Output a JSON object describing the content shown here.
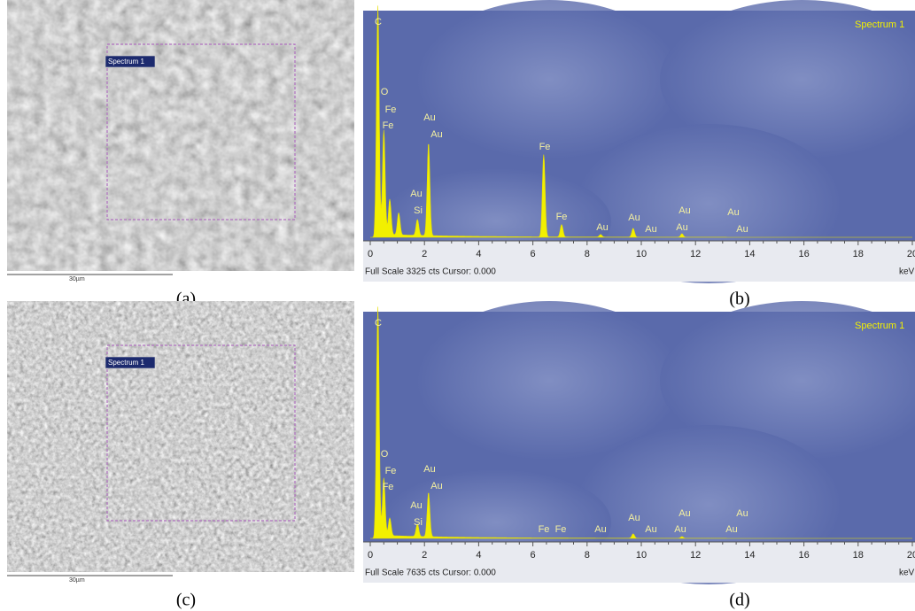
{
  "panels": [
    {
      "label": "(a)",
      "region_label": "Spectrum 1",
      "scale_bar": "30µm"
    },
    {
      "label": "(b)",
      "title": "Spectrum 1",
      "peak_labels": [
        "C",
        "O",
        "Fe",
        "Fe",
        "Au",
        "Au",
        "Fe",
        "Au",
        "Si",
        "Fe",
        "Au",
        "Au",
        "Au",
        "Au",
        "Au",
        "Au",
        "Au"
      ],
      "x_ticks": [
        "0",
        "2",
        "4",
        "6",
        "8",
        "10",
        "12",
        "14",
        "16",
        "18",
        "20"
      ],
      "x_unit": "keV",
      "footer": "Full Scale 3325 cts Cursor: 0.000"
    },
    {
      "label": "(c)",
      "region_label": "Spectrum 1",
      "scale_bar": "30µm"
    },
    {
      "label": "(d)",
      "title": "Spectrum 1",
      "peak_labels": [
        "C",
        "O",
        "Fe",
        "Fe",
        "Au",
        "Au",
        "Au",
        "Si",
        "Fe",
        "Fe",
        "Au",
        "Au",
        "Au",
        "Au",
        "Au",
        "Au",
        "Au"
      ],
      "x_ticks": [
        "0",
        "2",
        "4",
        "6",
        "8",
        "10",
        "12",
        "14",
        "16",
        "18",
        "20"
      ],
      "x_unit": "keV",
      "footer": "Full Scale 7635 cts Cursor: 0.000"
    }
  ]
}
